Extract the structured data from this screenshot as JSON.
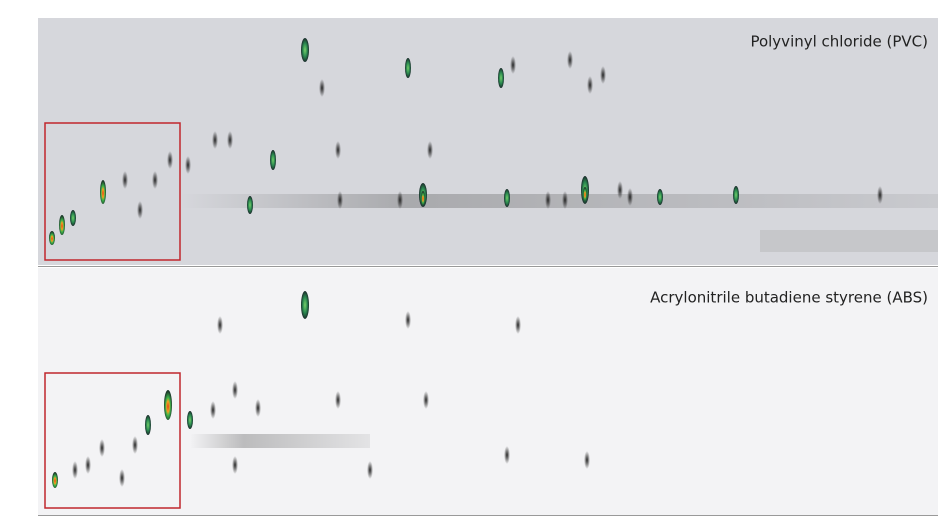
{
  "panels": [
    {
      "label": "Polyvinyl chloride (PVC)"
    },
    {
      "label": "Acrylonitrile butadiene styrene (ABS)"
    }
  ]
}
